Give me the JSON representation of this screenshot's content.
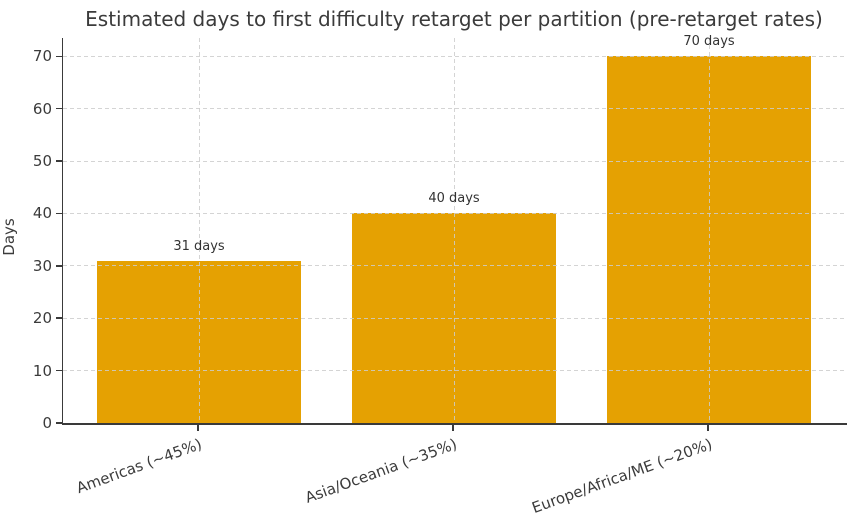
{
  "chart_data": {
    "type": "bar",
    "title": "Estimated days to first difficulty retarget per partition (pre-retarget rates)",
    "ylabel": "Days",
    "xlabel": "",
    "categories": [
      "Americas (~45%)",
      "Asia/Oceania (~35%)",
      "Europe/Africa/ME (~20%)"
    ],
    "values": [
      31,
      40,
      70
    ],
    "bar_labels": [
      "31 days",
      "40 days",
      "70 days"
    ],
    "yticks": [
      0,
      10,
      20,
      30,
      40,
      50,
      60,
      70
    ],
    "ylim": [
      0,
      73.5
    ],
    "grid": "dashed gridlines on both axes, drawn over bars",
    "legend": "none",
    "colors": {
      "bar": "#E5A102",
      "text": "#3B3B3B",
      "grid": "#CCCCCC",
      "axis": "#3A3A3A",
      "background": "#FFFFFF"
    }
  }
}
